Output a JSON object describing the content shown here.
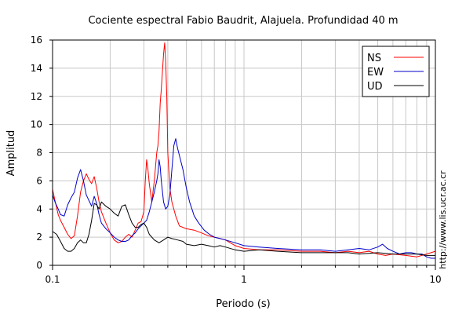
{
  "chart_data": {
    "type": "line",
    "title": "Cociente espectral Fabio Baudrit, Alajuela. Profundidad 40 m",
    "xlabel": "Periodo (s)",
    "ylabel": "Amplitud",
    "x_scale": "log",
    "xlim": [
      0.1,
      10
    ],
    "ylim": [
      0,
      16
    ],
    "x_ticks": [
      {
        "value": 0.1,
        "label": "0.1"
      },
      {
        "value": 1,
        "label": "1"
      },
      {
        "value": 10,
        "label": "10"
      }
    ],
    "y_ticks": [
      0,
      2,
      4,
      6,
      8,
      10,
      12,
      14,
      16
    ],
    "grid": true,
    "legend_position": "top-right",
    "watermark": "http://www.lis.ucr.ac.cr",
    "series": [
      {
        "name": "NS",
        "color": "#ff0000",
        "points": [
          [
            0.1,
            5.4
          ],
          [
            0.103,
            4.6
          ],
          [
            0.107,
            3.6
          ],
          [
            0.11,
            3.2
          ],
          [
            0.115,
            2.7
          ],
          [
            0.12,
            2.2
          ],
          [
            0.125,
            1.9
          ],
          [
            0.13,
            2.1
          ],
          [
            0.135,
            3.5
          ],
          [
            0.14,
            5.2
          ],
          [
            0.145,
            6.0
          ],
          [
            0.15,
            6.5
          ],
          [
            0.155,
            6.1
          ],
          [
            0.16,
            5.8
          ],
          [
            0.165,
            6.3
          ],
          [
            0.17,
            5.5
          ],
          [
            0.175,
            4.5
          ],
          [
            0.18,
            3.8
          ],
          [
            0.19,
            3.0
          ],
          [
            0.2,
            2.3
          ],
          [
            0.21,
            1.8
          ],
          [
            0.22,
            1.6
          ],
          [
            0.23,
            1.7
          ],
          [
            0.24,
            2.0
          ],
          [
            0.25,
            2.2
          ],
          [
            0.26,
            2.0
          ],
          [
            0.27,
            2.5
          ],
          [
            0.28,
            3.0
          ],
          [
            0.29,
            3.1
          ],
          [
            0.3,
            3.8
          ],
          [
            0.305,
            6.0
          ],
          [
            0.31,
            7.5
          ],
          [
            0.315,
            6.8
          ],
          [
            0.32,
            5.8
          ],
          [
            0.33,
            4.5
          ],
          [
            0.34,
            6.0
          ],
          [
            0.35,
            8.0
          ],
          [
            0.355,
            8.5
          ],
          [
            0.36,
            9.5
          ],
          [
            0.365,
            11.5
          ],
          [
            0.37,
            12.5
          ],
          [
            0.375,
            13.8
          ],
          [
            0.38,
            15.0
          ],
          [
            0.385,
            15.8
          ],
          [
            0.39,
            14.5
          ],
          [
            0.395,
            12.0
          ],
          [
            0.4,
            8.0
          ],
          [
            0.41,
            5.5
          ],
          [
            0.42,
            4.5
          ],
          [
            0.44,
            3.5
          ],
          [
            0.46,
            2.8
          ],
          [
            0.48,
            2.7
          ],
          [
            0.5,
            2.6
          ],
          [
            0.55,
            2.5
          ],
          [
            0.6,
            2.3
          ],
          [
            0.65,
            2.1
          ],
          [
            0.7,
            2.0
          ],
          [
            0.75,
            1.9
          ],
          [
            0.8,
            1.8
          ],
          [
            0.9,
            1.4
          ],
          [
            1.0,
            1.2
          ],
          [
            1.2,
            1.1
          ],
          [
            1.5,
            1.1
          ],
          [
            2.0,
            1.0
          ],
          [
            2.5,
            1.0
          ],
          [
            3.0,
            0.9
          ],
          [
            3.5,
            1.0
          ],
          [
            4.0,
            0.9
          ],
          [
            4.5,
            1.0
          ],
          [
            5.0,
            0.8
          ],
          [
            5.5,
            0.7
          ],
          [
            6.0,
            0.8
          ],
          [
            7.0,
            0.7
          ],
          [
            8.0,
            0.6
          ],
          [
            9.0,
            0.8
          ],
          [
            10.0,
            1.0
          ]
        ]
      },
      {
        "name": "EW",
        "color": "#0000cc",
        "points": [
          [
            0.1,
            5.0
          ],
          [
            0.103,
            4.5
          ],
          [
            0.107,
            4.0
          ],
          [
            0.11,
            3.6
          ],
          [
            0.115,
            3.5
          ],
          [
            0.12,
            4.3
          ],
          [
            0.125,
            4.8
          ],
          [
            0.13,
            5.2
          ],
          [
            0.135,
            6.2
          ],
          [
            0.14,
            6.8
          ],
          [
            0.145,
            6.0
          ],
          [
            0.15,
            5.0
          ],
          [
            0.155,
            4.6
          ],
          [
            0.16,
            4.2
          ],
          [
            0.165,
            4.9
          ],
          [
            0.17,
            4.4
          ],
          [
            0.175,
            3.6
          ],
          [
            0.18,
            3.0
          ],
          [
            0.19,
            2.6
          ],
          [
            0.2,
            2.3
          ],
          [
            0.21,
            2.0
          ],
          [
            0.22,
            1.8
          ],
          [
            0.23,
            1.7
          ],
          [
            0.24,
            1.7
          ],
          [
            0.25,
            1.8
          ],
          [
            0.26,
            2.1
          ],
          [
            0.27,
            2.3
          ],
          [
            0.28,
            2.6
          ],
          [
            0.29,
            2.8
          ],
          [
            0.3,
            3.0
          ],
          [
            0.31,
            3.2
          ],
          [
            0.32,
            3.8
          ],
          [
            0.33,
            4.5
          ],
          [
            0.34,
            5.2
          ],
          [
            0.35,
            6.0
          ],
          [
            0.355,
            6.5
          ],
          [
            0.36,
            7.5
          ],
          [
            0.365,
            7.0
          ],
          [
            0.37,
            6.0
          ],
          [
            0.38,
            4.5
          ],
          [
            0.39,
            4.0
          ],
          [
            0.4,
            4.2
          ],
          [
            0.41,
            5.0
          ],
          [
            0.42,
            6.8
          ],
          [
            0.43,
            8.5
          ],
          [
            0.44,
            9.0
          ],
          [
            0.45,
            8.3
          ],
          [
            0.46,
            7.8
          ],
          [
            0.48,
            6.8
          ],
          [
            0.5,
            5.5
          ],
          [
            0.52,
            4.5
          ],
          [
            0.55,
            3.5
          ],
          [
            0.58,
            3.0
          ],
          [
            0.62,
            2.5
          ],
          [
            0.66,
            2.2
          ],
          [
            0.7,
            2.0
          ],
          [
            0.75,
            1.9
          ],
          [
            0.8,
            1.8
          ],
          [
            0.9,
            1.6
          ],
          [
            1.0,
            1.4
          ],
          [
            1.2,
            1.3
          ],
          [
            1.5,
            1.2
          ],
          [
            2.0,
            1.1
          ],
          [
            2.5,
            1.1
          ],
          [
            3.0,
            1.0
          ],
          [
            3.5,
            1.1
          ],
          [
            4.0,
            1.2
          ],
          [
            4.5,
            1.1
          ],
          [
            5.0,
            1.3
          ],
          [
            5.3,
            1.5
          ],
          [
            5.6,
            1.2
          ],
          [
            6.0,
            1.0
          ],
          [
            6.5,
            0.8
          ],
          [
            7.0,
            0.9
          ],
          [
            7.5,
            0.9
          ],
          [
            8.0,
            0.8
          ],
          [
            8.5,
            0.8
          ],
          [
            9.0,
            0.6
          ],
          [
            9.5,
            0.5
          ],
          [
            10.0,
            0.5
          ]
        ]
      },
      {
        "name": "UD",
        "color": "#000000",
        "points": [
          [
            0.1,
            2.4
          ],
          [
            0.105,
            2.2
          ],
          [
            0.11,
            1.7
          ],
          [
            0.115,
            1.2
          ],
          [
            0.12,
            1.0
          ],
          [
            0.125,
            1.0
          ],
          [
            0.13,
            1.2
          ],
          [
            0.135,
            1.6
          ],
          [
            0.14,
            1.8
          ],
          [
            0.145,
            1.6
          ],
          [
            0.15,
            1.6
          ],
          [
            0.155,
            2.2
          ],
          [
            0.16,
            3.2
          ],
          [
            0.165,
            4.4
          ],
          [
            0.17,
            4.3
          ],
          [
            0.175,
            4.0
          ],
          [
            0.18,
            4.5
          ],
          [
            0.19,
            4.2
          ],
          [
            0.2,
            4.0
          ],
          [
            0.21,
            3.7
          ],
          [
            0.22,
            3.5
          ],
          [
            0.23,
            4.2
          ],
          [
            0.24,
            4.3
          ],
          [
            0.25,
            3.6
          ],
          [
            0.26,
            3.0
          ],
          [
            0.27,
            2.7
          ],
          [
            0.28,
            2.7
          ],
          [
            0.29,
            2.9
          ],
          [
            0.3,
            3.0
          ],
          [
            0.31,
            2.7
          ],
          [
            0.32,
            2.2
          ],
          [
            0.34,
            1.8
          ],
          [
            0.36,
            1.6
          ],
          [
            0.38,
            1.8
          ],
          [
            0.4,
            2.0
          ],
          [
            0.42,
            1.9
          ],
          [
            0.45,
            1.8
          ],
          [
            0.48,
            1.7
          ],
          [
            0.5,
            1.5
          ],
          [
            0.55,
            1.4
          ],
          [
            0.6,
            1.5
          ],
          [
            0.65,
            1.4
          ],
          [
            0.7,
            1.3
          ],
          [
            0.75,
            1.4
          ],
          [
            0.8,
            1.3
          ],
          [
            0.9,
            1.1
          ],
          [
            1.0,
            1.0
          ],
          [
            1.2,
            1.1
          ],
          [
            1.5,
            1.0
          ],
          [
            2.0,
            0.9
          ],
          [
            2.5,
            0.9
          ],
          [
            3.0,
            0.9
          ],
          [
            3.5,
            0.9
          ],
          [
            4.0,
            0.8
          ],
          [
            5.0,
            0.9
          ],
          [
            6.0,
            0.8
          ],
          [
            7.0,
            0.8
          ],
          [
            8.0,
            0.8
          ],
          [
            9.0,
            0.7
          ],
          [
            10.0,
            0.7
          ]
        ]
      }
    ]
  }
}
